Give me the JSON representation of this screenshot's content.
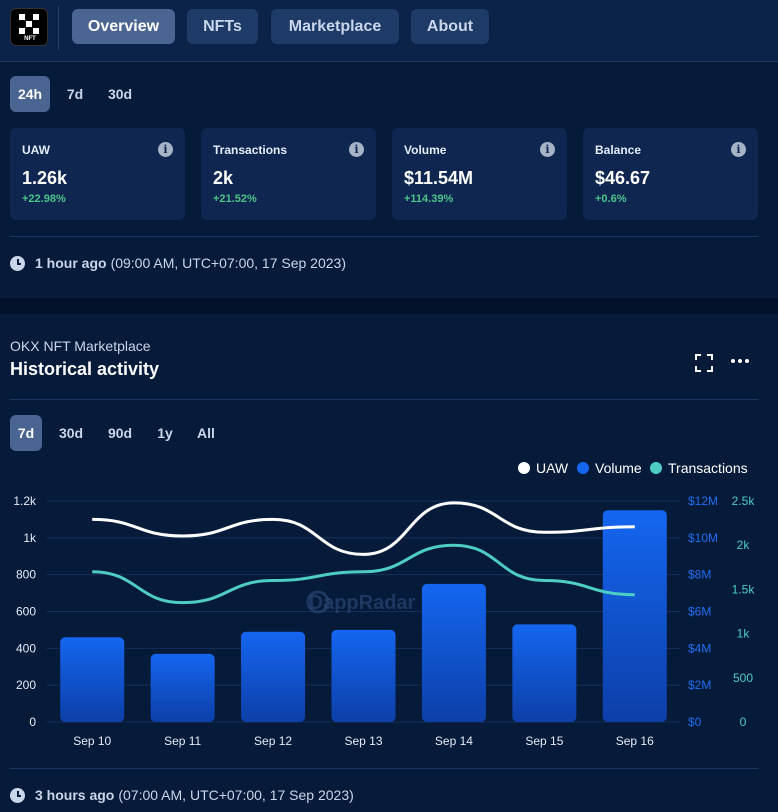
{
  "nav": {
    "logo_label": "NFT",
    "tabs": [
      {
        "label": "Overview",
        "active": true
      },
      {
        "label": "NFTs",
        "active": false
      },
      {
        "label": "Marketplace",
        "active": false
      },
      {
        "label": "About",
        "active": false
      }
    ]
  },
  "summary": {
    "periods": [
      {
        "label": "24h",
        "active": true
      },
      {
        "label": "7d",
        "active": false
      },
      {
        "label": "30d",
        "active": false
      }
    ],
    "cards": [
      {
        "title": "UAW",
        "value": "1.26k",
        "change": "+22.98%"
      },
      {
        "title": "Transactions",
        "value": "2k",
        "change": "+21.52%"
      },
      {
        "title": "Volume",
        "value": "$11.54M",
        "change": "+114.39%"
      },
      {
        "title": "Balance",
        "value": "$46.67",
        "change": "+0.6%"
      }
    ],
    "updated_bold": "1 hour ago",
    "updated_detail": "(09:00 AM, UTC+07:00, 17 Sep 2023)",
    "info_glyph": "i"
  },
  "history": {
    "subtitle": "OKX NFT Marketplace",
    "title": "Historical activity",
    "periods": [
      {
        "label": "7d",
        "active": true
      },
      {
        "label": "30d",
        "active": false
      },
      {
        "label": "90d",
        "active": false
      },
      {
        "label": "1y",
        "active": false
      },
      {
        "label": "All",
        "active": false
      }
    ],
    "updated_bold": "3 hours ago",
    "updated_detail": "(07:00 AM, UTC+07:00, 17 Sep 2023)",
    "watermark": "DappRadar",
    "icons": [
      "expand-icon",
      "more-icon",
      "clock-icon",
      "info-icon"
    ]
  },
  "colors": {
    "uaw": "#ffffff",
    "volume": "#1466f0",
    "transactions": "#4ecdc4",
    "positive": "#4cc38a"
  },
  "chart_data": {
    "type": "bar",
    "categories": [
      "Sep 10",
      "Sep 11",
      "Sep 12",
      "Sep 13",
      "Sep 14",
      "Sep 15",
      "Sep 16"
    ],
    "series": [
      {
        "name": "UAW",
        "type": "line",
        "axis": "left",
        "values": [
          1100,
          1010,
          1100,
          910,
          1190,
          1030,
          1060
        ]
      },
      {
        "name": "Volume",
        "type": "bar",
        "axis": "right1",
        "values": [
          4600000,
          3700000,
          4900000,
          5000000,
          7500000,
          5300000,
          11500000
        ]
      },
      {
        "name": "Transactions",
        "type": "line",
        "axis": "right2",
        "values": [
          1700,
          1350,
          1600,
          1700,
          2000,
          1600,
          1440
        ]
      }
    ],
    "axes": {
      "left": {
        "ticks": [
          "0",
          "200",
          "400",
          "600",
          "800",
          "1k",
          "1.2k"
        ],
        "range": [
          0,
          1200
        ]
      },
      "right1": {
        "ticks": [
          "$0",
          "$2M",
          "$4M",
          "$6M",
          "$8M",
          "$10M",
          "$12M"
        ],
        "range": [
          0,
          12000000
        ]
      },
      "right2": {
        "ticks": [
          "0",
          "500",
          "1k",
          "1.5k",
          "2k",
          "2.5k"
        ],
        "range": [
          0,
          2500
        ]
      }
    },
    "legend_position": "top-right",
    "grid": true
  }
}
